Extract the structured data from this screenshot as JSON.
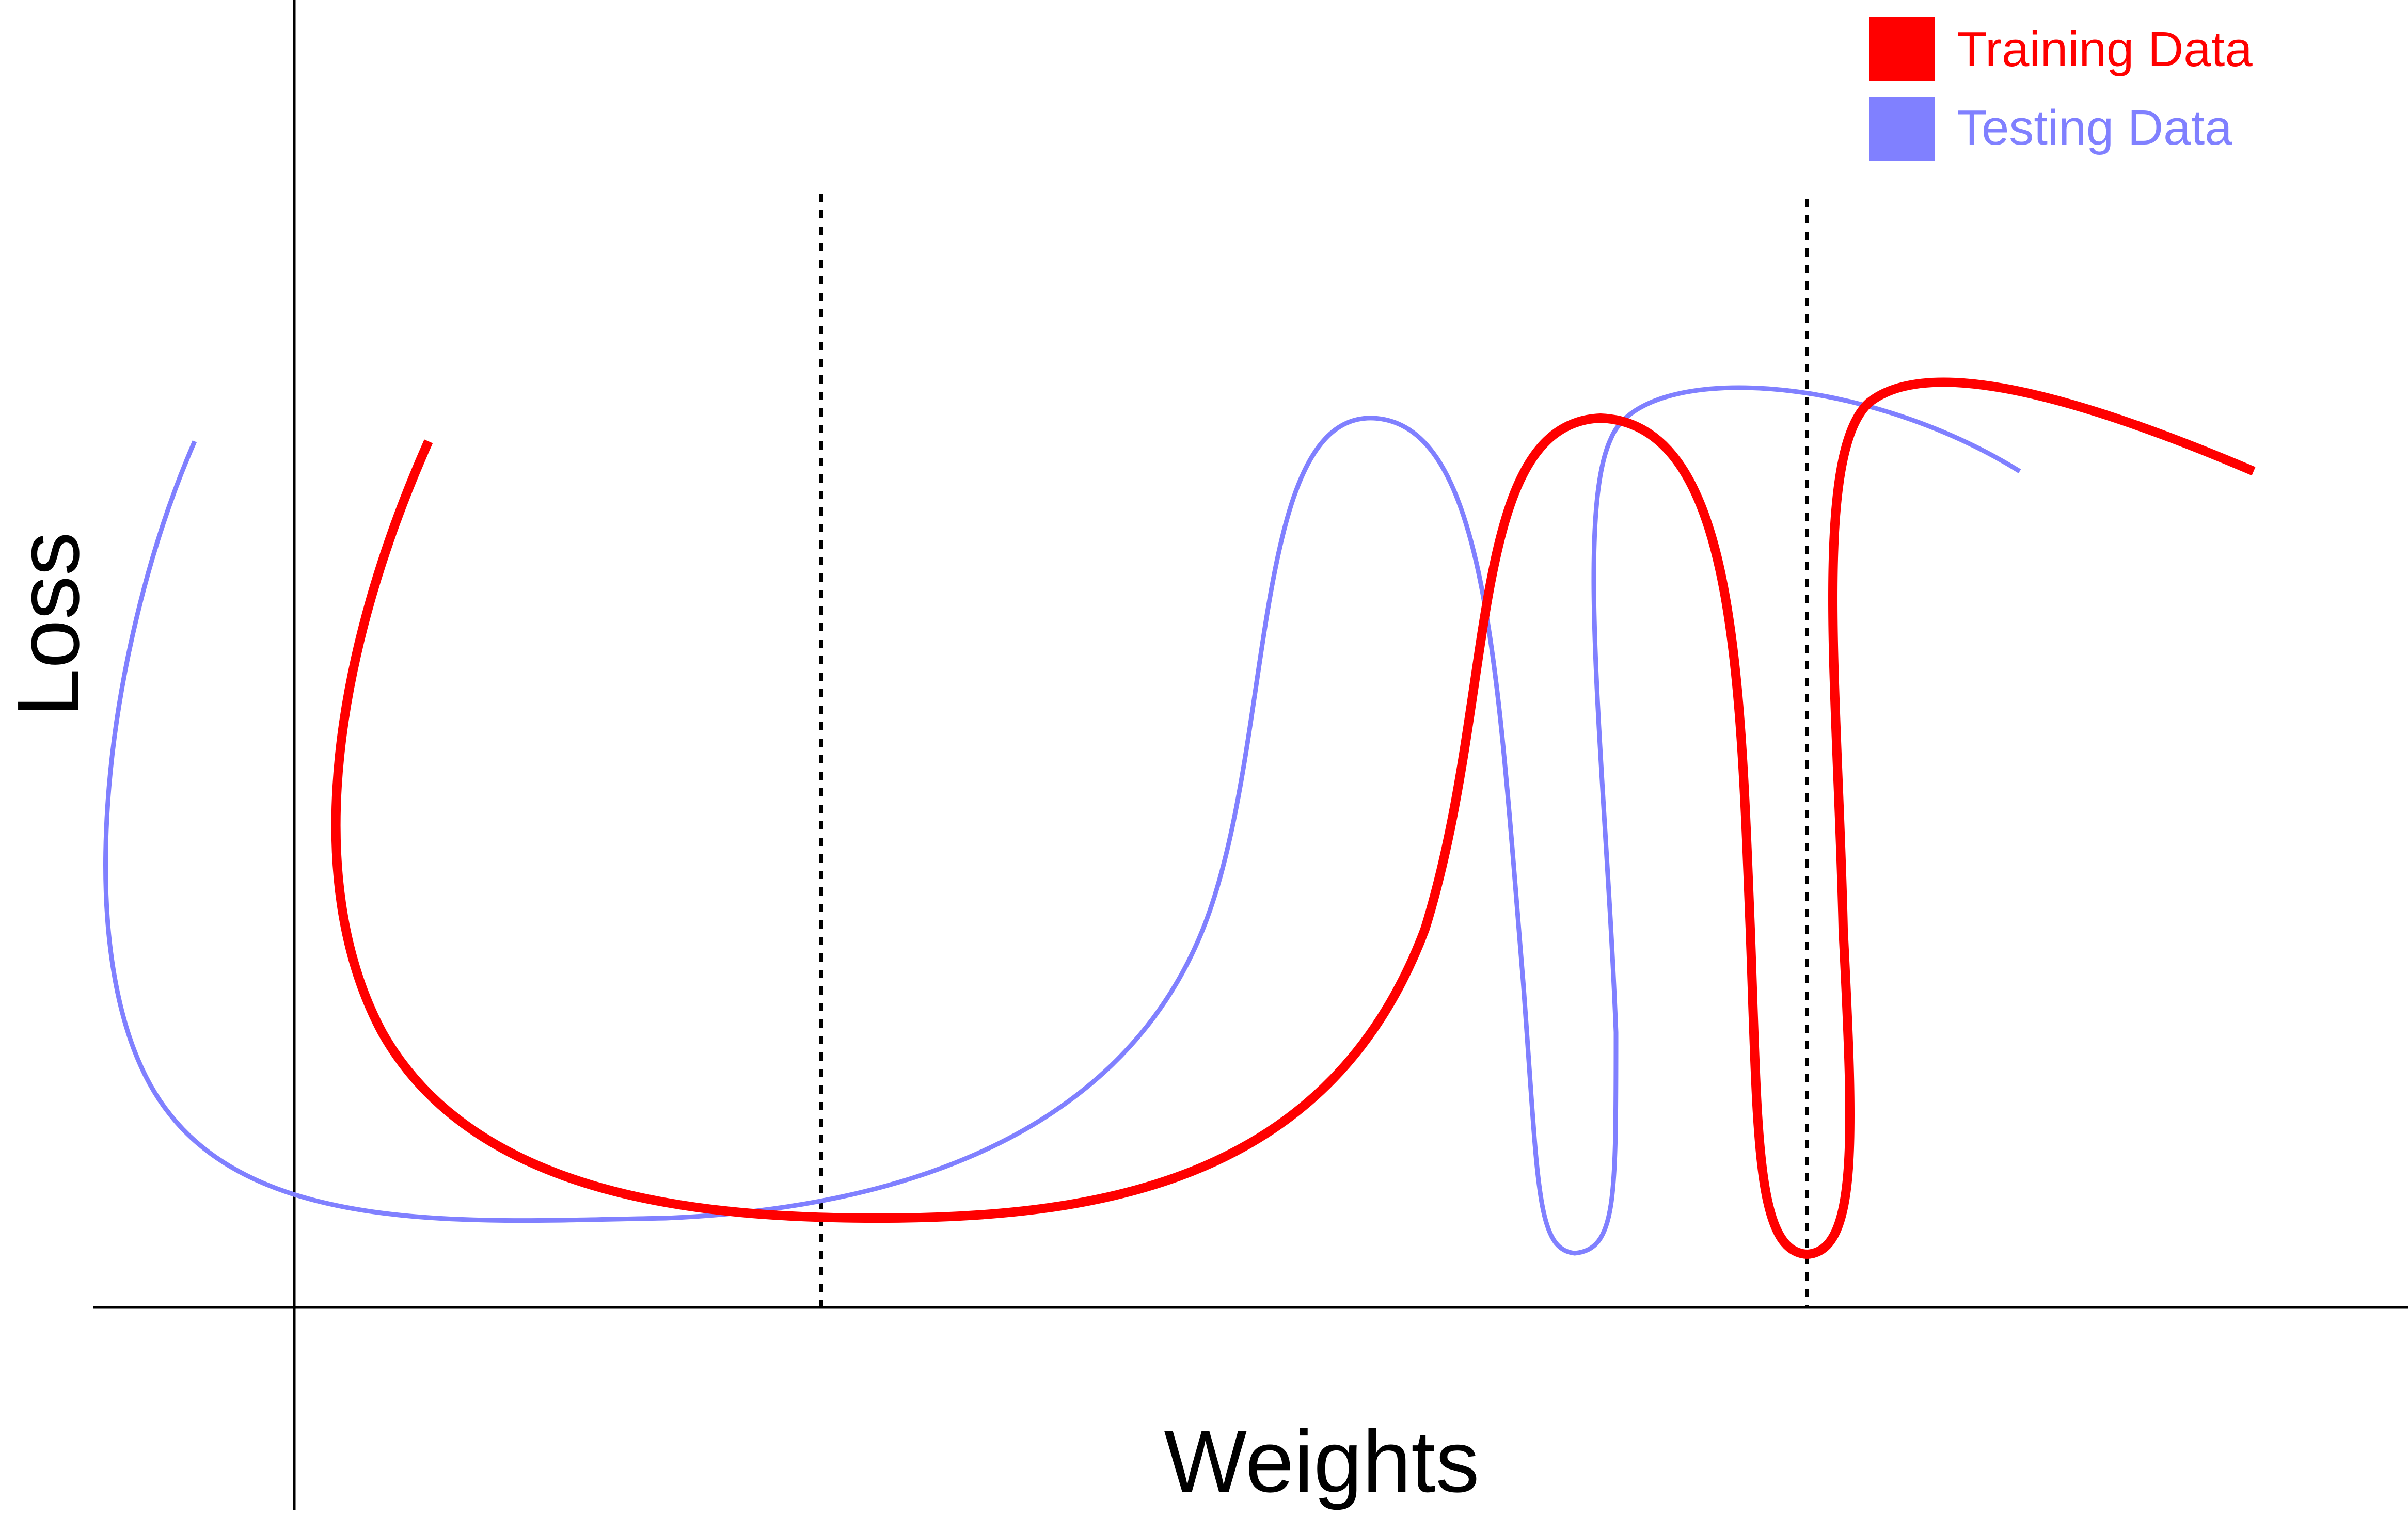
{
  "chart_data": {
    "type": "line",
    "title": "",
    "xlabel": "Weights",
    "ylabel": "Loss",
    "grid": false,
    "legend_position": "top-right",
    "series": [
      {
        "name": "Training Data",
        "color": "#ff0000"
      },
      {
        "name": "Testing Data",
        "color": "#8080ff"
      }
    ]
  }
}
